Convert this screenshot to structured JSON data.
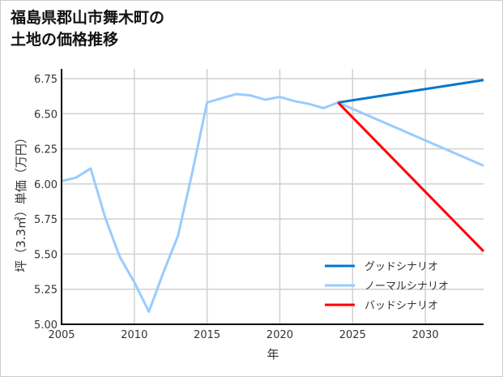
{
  "chart_data": {
    "type": "line",
    "title_lines": [
      "福島県郡山市舞木町の",
      "土地の価格推移"
    ],
    "xlabel": "年",
    "ylabel": "坪（3.3㎡）単価（万円）",
    "xlim": [
      2005,
      2034
    ],
    "ylim": [
      5.0,
      6.8
    ],
    "xticks": [
      2005,
      2010,
      2015,
      2020,
      2025,
      2030
    ],
    "yticks": [
      5.0,
      5.25,
      5.5,
      5.75,
      6.0,
      6.25,
      6.5,
      6.75
    ],
    "grid": true,
    "legend_position": "bottom-right",
    "series": [
      {
        "name": "グッドシナリオ",
        "color": "#0077cc",
        "x": [
          2024,
          2034
        ],
        "y": [
          6.58,
          6.74
        ]
      },
      {
        "name": "ノーマルシナリオ",
        "color": "#99ccff",
        "x": [
          2005,
          2006,
          2007,
          2008,
          2009,
          2010,
          2011,
          2012,
          2013,
          2014,
          2015,
          2016,
          2017,
          2018,
          2019,
          2020,
          2021,
          2022,
          2023,
          2024,
          2034
        ],
        "y": [
          6.02,
          6.045,
          6.11,
          5.76,
          5.48,
          5.3,
          5.09,
          5.37,
          5.63,
          6.09,
          6.58,
          6.61,
          6.64,
          6.63,
          6.6,
          6.62,
          6.59,
          6.57,
          6.54,
          6.58,
          6.13
        ]
      },
      {
        "name": "バッドシナリオ",
        "color": "#ff0000",
        "x": [
          2024,
          2034
        ],
        "y": [
          6.58,
          5.52
        ]
      }
    ]
  }
}
